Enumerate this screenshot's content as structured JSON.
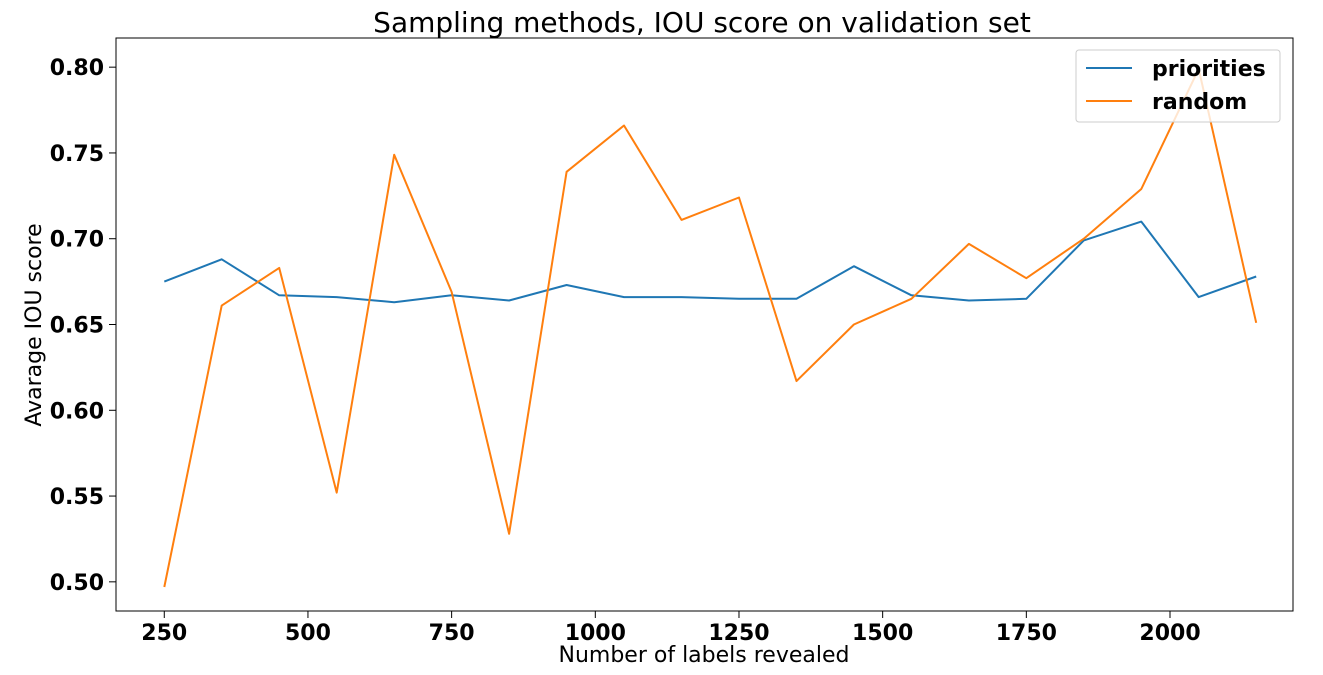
{
  "chart_data": {
    "type": "line",
    "title": "Sampling methods, IOU score on validation set",
    "xlabel": "Number of labels revealed",
    "ylabel": "Avarage IOU score",
    "xlim": [
      166,
      2214
    ],
    "ylim": [
      0.483,
      0.817
    ],
    "xticks": [
      250,
      500,
      750,
      1000,
      1250,
      1500,
      1750,
      2000
    ],
    "xtick_labels": [
      "250",
      "500",
      "750",
      "1000",
      "1250",
      "1500",
      "1750",
      "2000"
    ],
    "yticks": [
      0.5,
      0.55,
      0.6,
      0.65,
      0.7,
      0.75,
      0.8
    ],
    "ytick_labels": [
      "0.50",
      "0.55",
      "0.60",
      "0.65",
      "0.70",
      "0.75",
      "0.80"
    ],
    "grid": false,
    "legend_position": "top-right",
    "x": [
      250,
      350,
      450,
      550,
      650,
      750,
      850,
      950,
      1050,
      1150,
      1250,
      1350,
      1450,
      1550,
      1650,
      1750,
      1850,
      1950,
      2050,
      2150
    ],
    "series": [
      {
        "name": "priorities",
        "color": "#1f77b4",
        "values": [
          0.675,
          0.688,
          0.667,
          0.666,
          0.663,
          0.667,
          0.664,
          0.673,
          0.666,
          0.666,
          0.665,
          0.665,
          0.684,
          0.667,
          0.664,
          0.665,
          0.699,
          0.71,
          0.666,
          0.678
        ]
      },
      {
        "name": "random",
        "color": "#ff7f0e",
        "values": [
          0.497,
          0.661,
          0.683,
          0.552,
          0.749,
          0.669,
          0.528,
          0.739,
          0.766,
          0.711,
          0.724,
          0.617,
          0.65,
          0.665,
          0.697,
          0.677,
          0.7,
          0.729,
          0.799,
          0.651
        ]
      }
    ]
  }
}
